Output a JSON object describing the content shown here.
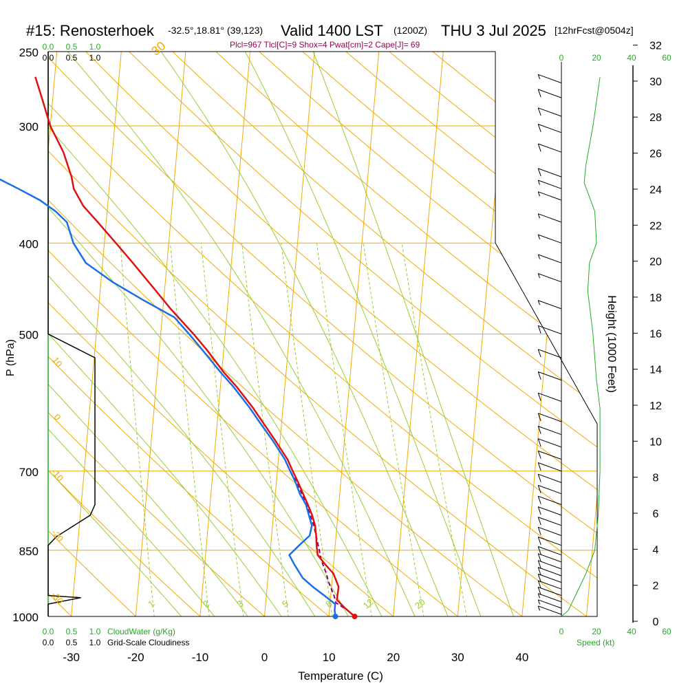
{
  "header": {
    "station": "#15: Renosterhoek",
    "coords": "-32.5°,18.81° (39,123)",
    "valid": "Valid 1400 LST",
    "zulu": "(1200Z)",
    "date": "THU 3 Jul 2025",
    "forecast": "[12hrFcst@0504z]",
    "stability": "Plcl=967 Tlcl[C]=9 Shox=4 Pwat[cm]=2 Cape[J]= 69"
  },
  "colors": {
    "temperature": "#dd1111",
    "dewpoint": "#1a6ee6",
    "parcel": "#880077",
    "isobar_isotherm": "#f0aa00",
    "dry_adiabat": "#f0aa00",
    "moist_adiabat": "#9acd32",
    "mixing_ratio": "#9acd32",
    "cloudwater": "#22aa22",
    "wind_speed": "#22aa22",
    "cloudiness": "#000000",
    "stability_text": "#990055"
  },
  "chart_data": {
    "type": "skew-t",
    "xlabel": "Temperature (C)",
    "ylabel": "P (hPa)",
    "y2label": "Height (1000 Feet)",
    "x_ticks": [
      -30,
      -20,
      -10,
      0,
      10,
      20,
      30,
      40
    ],
    "pressure_ticks": [
      250,
      300,
      400,
      500,
      700,
      850,
      1000
    ],
    "height_ticks": [
      0,
      2,
      4,
      6,
      8,
      10,
      12,
      14,
      16,
      18,
      20,
      22,
      24,
      26,
      28,
      30,
      32
    ],
    "temperature_profile": [
      [
        1000,
        14.0
      ],
      [
        980,
        12.4
      ],
      [
        960,
        11.0
      ],
      [
        930,
        11.1
      ],
      [
        900,
        10.1
      ],
      [
        880,
        8.7
      ],
      [
        860,
        7.4
      ],
      [
        840,
        7.1
      ],
      [
        820,
        6.9
      ],
      [
        800,
        6.6
      ],
      [
        780,
        6.0
      ],
      [
        760,
        5.2
      ],
      [
        740,
        4.3
      ],
      [
        720,
        3.4
      ],
      [
        700,
        2.4
      ],
      [
        680,
        1.4
      ],
      [
        650,
        -0.7
      ],
      [
        620,
        -3.0
      ],
      [
        600,
        -4.6
      ],
      [
        570,
        -7.4
      ],
      [
        550,
        -9.6
      ],
      [
        520,
        -12.6
      ],
      [
        500,
        -14.9
      ],
      [
        470,
        -18.8
      ],
      [
        450,
        -21.3
      ],
      [
        420,
        -25.3
      ],
      [
        400,
        -28.2
      ],
      [
        380,
        -31.3
      ],
      [
        365,
        -33.8
      ],
      [
        350,
        -35.5
      ],
      [
        340,
        -36.0
      ],
      [
        320,
        -37.6
      ],
      [
        300,
        -40.0
      ],
      [
        280,
        -41.7
      ],
      [
        266,
        -43.0
      ]
    ],
    "dewpoint_profile": [
      [
        1000,
        11.0
      ],
      [
        985,
        10.8
      ],
      [
        970,
        10.8
      ],
      [
        950,
        9.0
      ],
      [
        930,
        7.1
      ],
      [
        910,
        5.4
      ],
      [
        880,
        3.9
      ],
      [
        860,
        3.0
      ],
      [
        840,
        4.4
      ],
      [
        820,
        5.9
      ],
      [
        800,
        6.1
      ],
      [
        780,
        5.5
      ],
      [
        760,
        4.9
      ],
      [
        740,
        3.8
      ],
      [
        720,
        3.0
      ],
      [
        700,
        2.0
      ],
      [
        680,
        1.0
      ],
      [
        650,
        -1.1
      ],
      [
        620,
        -3.5
      ],
      [
        600,
        -5.1
      ],
      [
        570,
        -7.9
      ],
      [
        550,
        -10.1
      ],
      [
        520,
        -13.3
      ],
      [
        500,
        -15.6
      ],
      [
        480,
        -18.1
      ],
      [
        460,
        -23.2
      ],
      [
        440,
        -28.2
      ],
      [
        420,
        -32.6
      ],
      [
        400,
        -34.8
      ],
      [
        380,
        -36.1
      ],
      [
        370,
        -38.0
      ],
      [
        360,
        -40.6
      ],
      [
        350,
        -44.1
      ],
      [
        340,
        -47.9
      ],
      [
        330,
        -51.4
      ],
      [
        320,
        -53.8
      ],
      [
        300,
        -58.6
      ],
      [
        290,
        -61.6
      ],
      [
        281,
        -64.4
      ],
      [
        275,
        -62.7
      ],
      [
        266,
        -61.7
      ]
    ],
    "parcel_profile": [
      [
        1000,
        14.0
      ],
      [
        985,
        12.8
      ],
      [
        967,
        10.9
      ],
      [
        950,
        10.5
      ],
      [
        920,
        9.5
      ],
      [
        900,
        9.0
      ],
      [
        870,
        8.0
      ],
      [
        850,
        7.6
      ],
      [
        800,
        6.4
      ],
      [
        760,
        5.0
      ],
      [
        720,
        3.2
      ],
      [
        700,
        2.0
      ]
    ],
    "mixing_ratio_labels": [
      1,
      2,
      3,
      5,
      8,
      12,
      20
    ],
    "moist_adiabat_labels": [
      0,
      10,
      20,
      30
    ],
    "dry_adiabat_labels": [
      10,
      0,
      -10,
      -20,
      -30
    ],
    "cloudwater_axis": {
      "label": "CloudWater (g/Kg)",
      "ticks": [
        0.0,
        0.5,
        1.0
      ]
    },
    "cloudiness_axis": {
      "label": "Grid-Scale Cloudiness",
      "ticks": [
        0.0,
        0.5,
        1.0
      ]
    },
    "cloudiness_profile": [
      [
        250,
        0.0
      ],
      [
        500,
        0.0
      ],
      [
        530,
        1.0
      ],
      [
        760,
        1.0
      ],
      [
        780,
        0.9
      ],
      [
        822,
        0.18
      ],
      [
        840,
        0.0
      ],
      [
        950,
        0.0
      ],
      [
        955,
        0.7
      ],
      [
        970,
        0.0
      ],
      [
        1000,
        0.0
      ]
    ],
    "wind_speed_axis": {
      "label": "Speed (kt)",
      "ticks": [
        0,
        20,
        40,
        60
      ]
    },
    "wind_speed_profile": [
      [
        266,
        22
      ],
      [
        300,
        18
      ],
      [
        330,
        14
      ],
      [
        345,
        13
      ],
      [
        370,
        19
      ],
      [
        400,
        20
      ],
      [
        420,
        16
      ],
      [
        450,
        15
      ],
      [
        500,
        18
      ],
      [
        560,
        20
      ],
      [
        600,
        22
      ],
      [
        640,
        22
      ],
      [
        700,
        22
      ],
      [
        780,
        21
      ],
      [
        850,
        19
      ],
      [
        900,
        14
      ],
      [
        950,
        8
      ],
      [
        985,
        4
      ],
      [
        1000,
        0
      ]
    ],
    "wind_barbs": [
      [
        270,
        5
      ],
      [
        280,
        10
      ],
      [
        293,
        10
      ],
      [
        305,
        10
      ],
      [
        320,
        10
      ],
      [
        340,
        10
      ],
      [
        350,
        5
      ],
      [
        360,
        5
      ],
      [
        380,
        5
      ],
      [
        400,
        5
      ],
      [
        420,
        5
      ],
      [
        440,
        5
      ],
      [
        470,
        5
      ],
      [
        500,
        10
      ],
      [
        530,
        10
      ],
      [
        560,
        10
      ],
      [
        590,
        10
      ],
      [
        620,
        10
      ],
      [
        640,
        10
      ],
      [
        660,
        10
      ],
      [
        680,
        10
      ],
      [
        700,
        10
      ],
      [
        720,
        10
      ],
      [
        740,
        10
      ],
      [
        760,
        10
      ],
      [
        780,
        10
      ],
      [
        800,
        10
      ],
      [
        820,
        10
      ],
      [
        840,
        10
      ],
      [
        860,
        10
      ],
      [
        875,
        10
      ],
      [
        890,
        10
      ],
      [
        905,
        10
      ],
      [
        920,
        10
      ],
      [
        935,
        10
      ],
      [
        950,
        10
      ],
      [
        965,
        5
      ],
      [
        980,
        5
      ],
      [
        995,
        5
      ]
    ]
  }
}
